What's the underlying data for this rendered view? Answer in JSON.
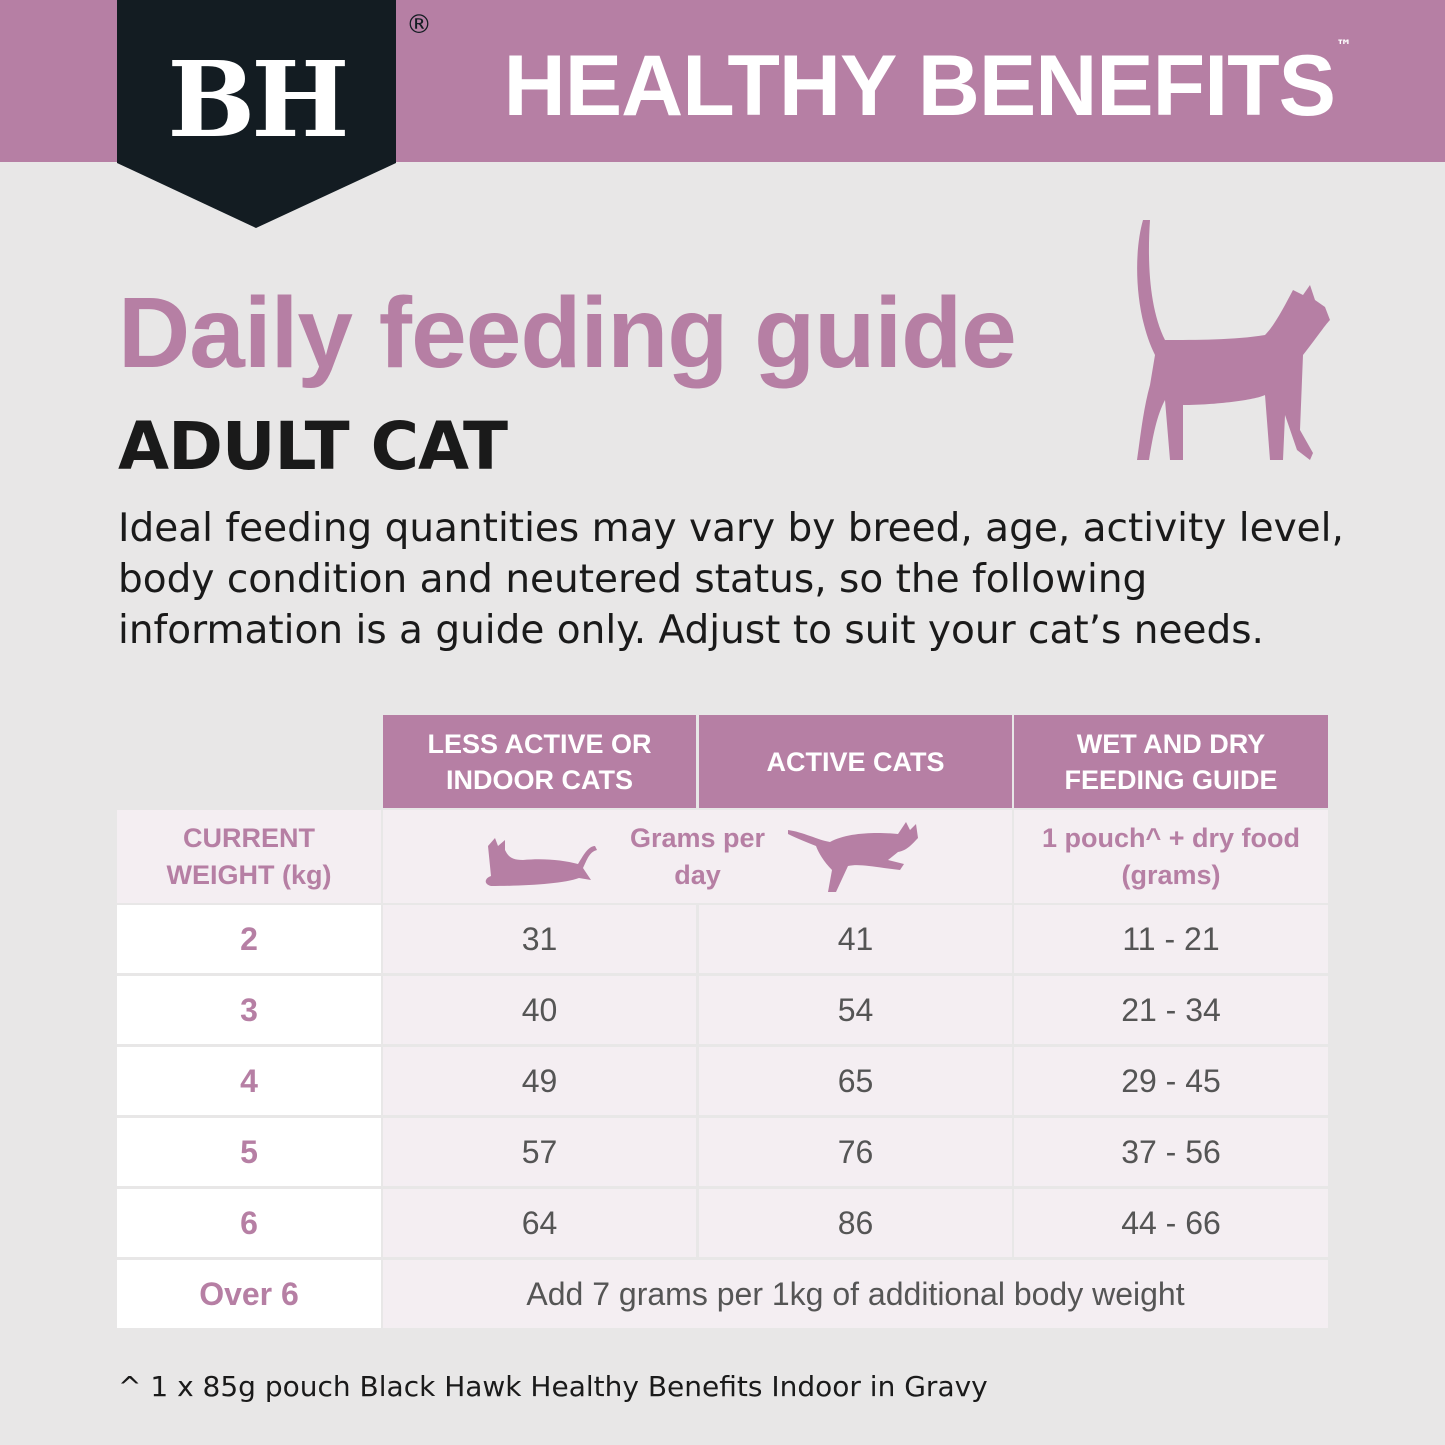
{
  "brand": {
    "logo": "BH",
    "registered": "®",
    "product_line": "HEALTHY BENEFITS",
    "trademark": "™"
  },
  "colors": {
    "accent": "#b67fa4",
    "logo_bg": "#131c22",
    "background": "#e8e7e7",
    "cell_bg": "#f4eef2"
  },
  "title": "Daily feeding guide",
  "subtitle": "ADULT CAT",
  "description": "Ideal feeding quantities may vary by breed, age, activity level, body condition and neutered status, so the following information is a guide only. Adjust to suit your cat’s needs.",
  "table": {
    "headers": [
      "LESS ACTIVE OR INDOOR CATS",
      "ACTIVE CATS",
      "WET AND DRY FEEDING GUIDE"
    ],
    "weight_header": "CURRENT WEIGHT (kg)",
    "grams_label": "Grams per day",
    "wet_dry_label": "1 pouch^ + dry food (grams)",
    "icons": [
      "lying-cat-icon",
      "leaping-cat-icon"
    ],
    "rows": [
      {
        "weight": "2",
        "less_active": "31",
        "active": "41",
        "wet_dry": "11 - 21"
      },
      {
        "weight": "3",
        "less_active": "40",
        "active": "54",
        "wet_dry": "21 - 34"
      },
      {
        "weight": "4",
        "less_active": "49",
        "active": "65",
        "wet_dry": "29 - 45"
      },
      {
        "weight": "5",
        "less_active": "57",
        "active": "76",
        "wet_dry": "37 - 56"
      },
      {
        "weight": "6",
        "less_active": "64",
        "active": "86",
        "wet_dry": "44 - 66"
      }
    ],
    "over": {
      "weight": "Over 6",
      "note": "Add 7 grams per 1kg of additional body weight"
    }
  },
  "footnote": "^ 1 x 85g pouch Black Hawk Healthy Benefits Indoor in Gravy"
}
